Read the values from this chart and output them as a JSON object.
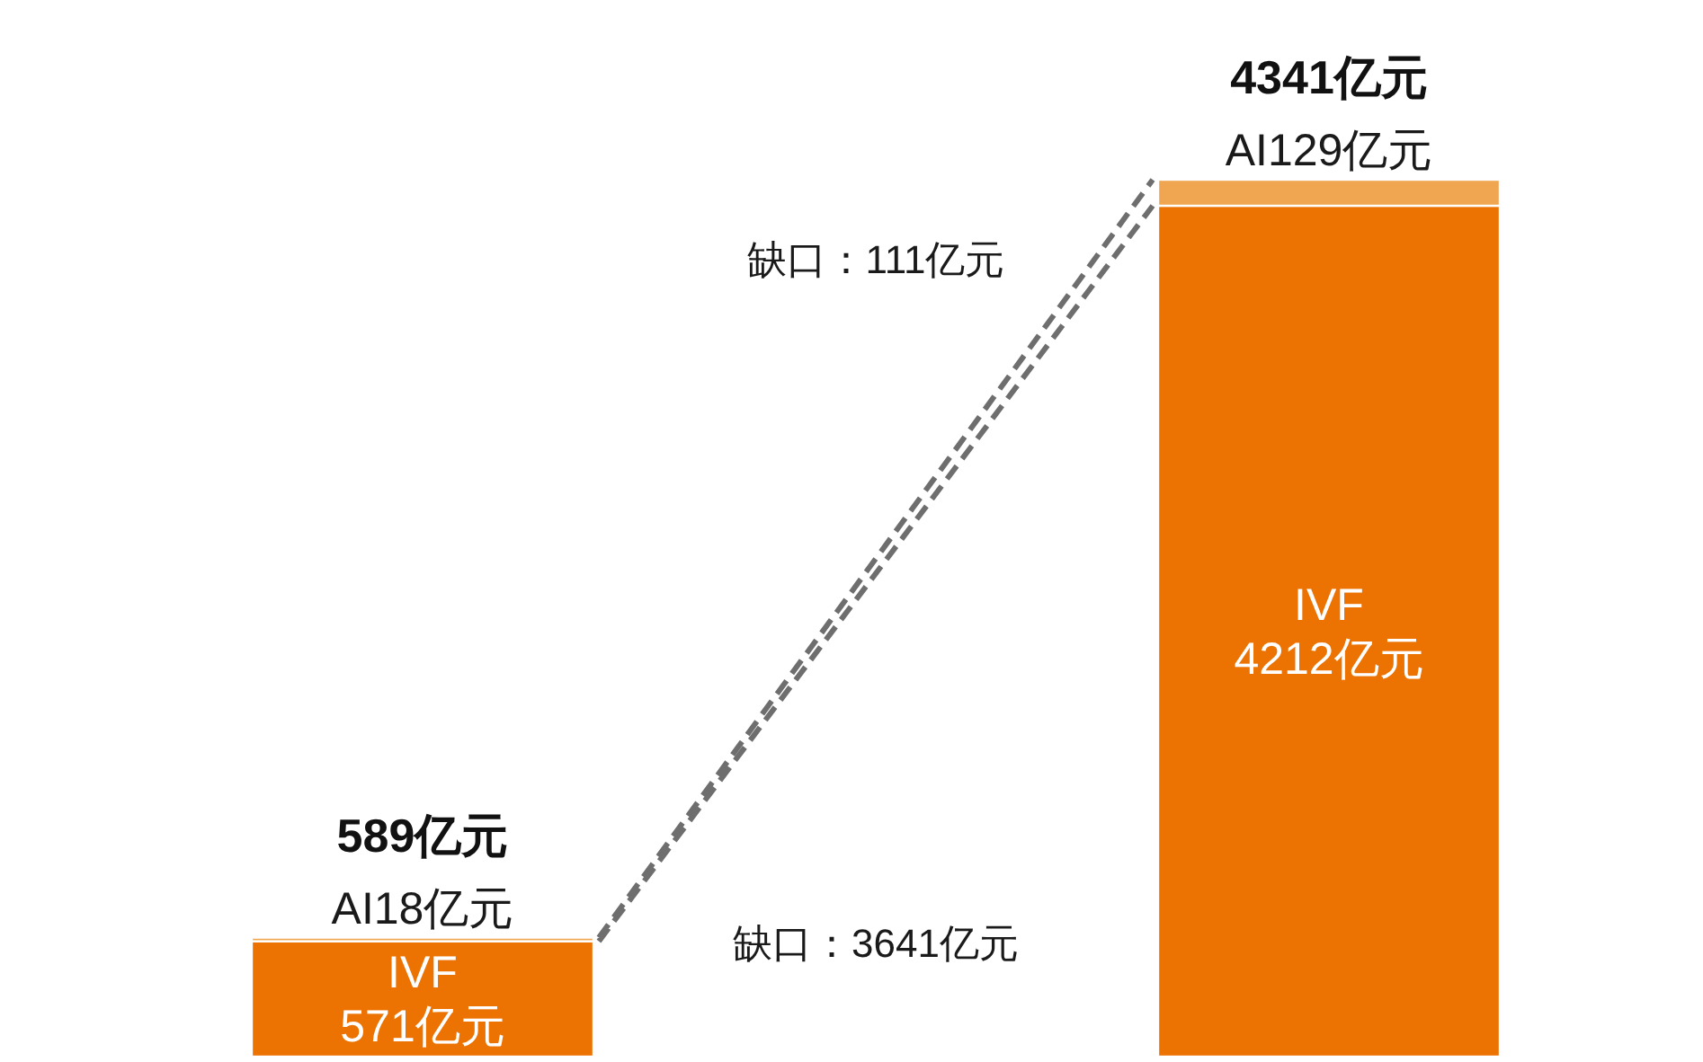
{
  "chart_data": {
    "type": "bar",
    "stacked": true,
    "categories": [
      null,
      null
    ],
    "series": [
      {
        "name": "IVF",
        "color": "#ec7202",
        "values": [
          571,
          4212
        ],
        "value_labels": [
          "571亿元",
          "4212亿元"
        ]
      },
      {
        "name": "AI",
        "color": "#f0a650",
        "values": [
          18,
          129
        ],
        "value_labels": [
          "18亿元",
          "129亿元"
        ]
      }
    ],
    "totals": [
      "589亿元",
      "4341亿元"
    ],
    "annotations": [
      "缺口：111亿元",
      "缺口：3641亿元"
    ],
    "line_style": "dashed"
  }
}
